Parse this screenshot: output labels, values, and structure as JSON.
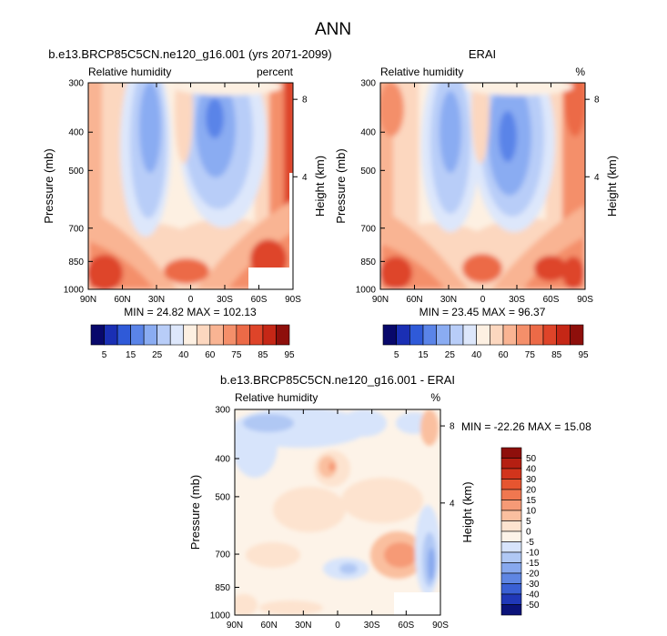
{
  "figure": {
    "title": "ANN"
  },
  "chart_data": [
    {
      "type": "heatmap",
      "title": "b.e13.BRCP85C5CN.ne120_g16.001 (yrs 2071-2099)",
      "left_label": "Relative humidity",
      "right_label": "percent",
      "ylabel": "Pressure (mb)",
      "y2label": "Height (km)",
      "x_ticks": [
        "90N",
        "60N",
        "30N",
        "0",
        "30S",
        "60S",
        "90S"
      ],
      "y_ticks": [
        "300",
        "400",
        "500",
        "700",
        "850",
        "1000"
      ],
      "y2_ticks": [
        "8",
        "4"
      ],
      "stats": "MIN = 24.82   MAX = 102.13",
      "min": 24.82,
      "max": 102.13
    },
    {
      "type": "heatmap",
      "title": "ERAI",
      "left_label": "Relative humidity",
      "right_label": "%",
      "ylabel": "Pressure (mb)",
      "y2label": "Height (km)",
      "x_ticks": [
        "90N",
        "60N",
        "30N",
        "0",
        "30S",
        "60S",
        "90S"
      ],
      "y_ticks": [
        "300",
        "400",
        "500",
        "700",
        "850",
        "1000"
      ],
      "y2_ticks": [
        "8",
        "4"
      ],
      "stats": "MIN = 23.45   MAX = 96.37",
      "min": 23.45,
      "max": 96.37
    },
    {
      "type": "heatmap",
      "title": "b.e13.BRCP85C5CN.ne120_g16.001 - ERAI",
      "left_label": "Relative humidity",
      "right_label": "%",
      "ylabel": "Pressure (mb)",
      "y2label": "Height (km)",
      "x_ticks": [
        "90N",
        "60N",
        "30N",
        "0",
        "30S",
        "60S",
        "90S"
      ],
      "y_ticks": [
        "300",
        "400",
        "500",
        "700",
        "850",
        "1000"
      ],
      "y2_ticks": [
        "8",
        "4"
      ],
      "stats": "MIN = -22.26   MAX = 15.08",
      "min": -22.26,
      "max": 15.08
    }
  ],
  "colorbars": {
    "main": {
      "labels": [
        "5",
        "15",
        "25",
        "40",
        "60",
        "75",
        "85",
        "95"
      ],
      "colors": [
        "#08086b",
        "#1a2fb4",
        "#2f5ad8",
        "#5a84e8",
        "#8aacf2",
        "#b8cdf8",
        "#dde7fb",
        "#fdf0e2",
        "#fcd7bf",
        "#f9b493",
        "#f48f6a",
        "#ec6a47",
        "#de4429",
        "#c52716",
        "#8e0f0b"
      ]
    },
    "diff": {
      "labels": [
        "50",
        "40",
        "30",
        "20",
        "15",
        "10",
        "5",
        "0",
        "-5",
        "-10",
        "-15",
        "-20",
        "-30",
        "-40",
        "-50"
      ],
      "colors": [
        "#8e0f0b",
        "#b51f12",
        "#d2341c",
        "#e65530",
        "#f07750",
        "#f69a76",
        "#fabf9f",
        "#fde3cf",
        "#fdf3e8",
        "#d7e4fb",
        "#b0c8f4",
        "#87a8ee",
        "#5f86e3",
        "#3a60d4",
        "#2038b8",
        "#0b137a"
      ]
    }
  }
}
